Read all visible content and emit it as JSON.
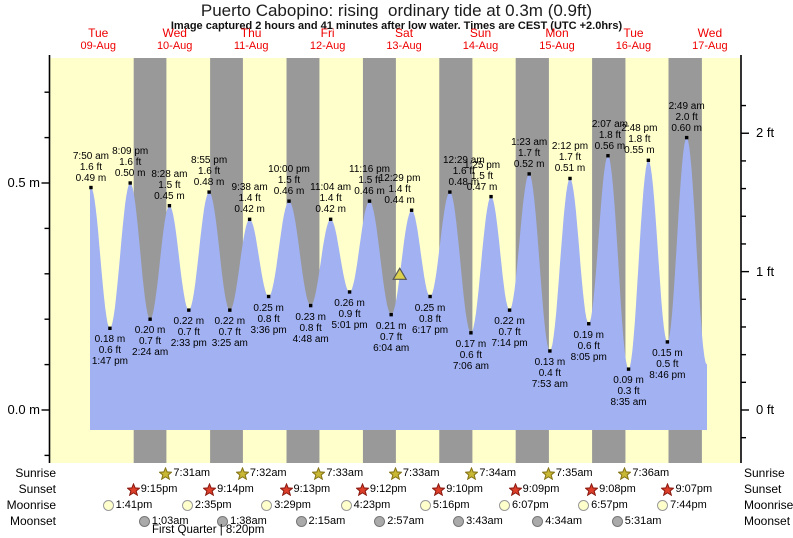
{
  "title": "Puerto Cabopino: rising  ordinary tide at 0.3m (0.9ft)",
  "subtitle": "Image captured 2 hours and 41 minutes after low water. Times are CEST (UTC +2.0hrs)",
  "colors": {
    "day_band": "#ffffcc",
    "night_band": "#999999",
    "tide_fill": "#a1b1f2",
    "day_label": "#ee0000",
    "marker_fill": "#ddd24e",
    "marker_stroke": "#555555",
    "sunrise_star_fill": "#c9b834",
    "sunrise_star_stroke": "#857417",
    "sunset_star_fill": "#dd3f2a",
    "sunset_star_stroke": "#8a1a10",
    "moonrise_fill": "#ffffcc",
    "moonrise_stroke": "#999999",
    "moonset_fill": "#aaaaaa",
    "moonset_stroke": "#777777"
  },
  "chart_data": {
    "type": "area",
    "title": "Puerto Cabopino: rising  ordinary tide at 0.3m (0.9ft)",
    "days": [
      {
        "dow": "Tue",
        "date": "09-Aug"
      },
      {
        "dow": "Wed",
        "date": "10-Aug"
      },
      {
        "dow": "Thu",
        "date": "11-Aug"
      },
      {
        "dow": "Fri",
        "date": "12-Aug"
      },
      {
        "dow": "Sat",
        "date": "13-Aug"
      },
      {
        "dow": "Sun",
        "date": "14-Aug"
      },
      {
        "dow": "Mon",
        "date": "15-Aug"
      },
      {
        "dow": "Tue",
        "date": "16-Aug"
      },
      {
        "dow": "Wed",
        "date": "17-Aug"
      }
    ],
    "y_axis_left": {
      "unit": "m",
      "major_labels": [
        {
          "value": 0.5,
          "label": "0.5 m"
        },
        {
          "value": 0.0,
          "label": "0.0 m"
        }
      ],
      "minor_step": 0.1,
      "range": [
        -0.1,
        0.7
      ]
    },
    "y_axis_right": {
      "unit": "ft",
      "major_labels": [
        {
          "value": 2,
          "label": "2 ft"
        },
        {
          "value": 1,
          "label": "1 ft"
        },
        {
          "value": 0,
          "label": "0 ft"
        }
      ],
      "minor_step": 0.2,
      "range": [
        -0.2,
        2.3
      ]
    },
    "tide_events": [
      {
        "day": 0,
        "type": "high",
        "time": "7:50 am",
        "ft": "1.6 ft",
        "m": "0.49 m"
      },
      {
        "day": 0,
        "type": "low",
        "time": "1:47 pm",
        "ft": "0.6 ft",
        "m": "0.18 m"
      },
      {
        "day": 0,
        "type": "high",
        "time": "8:09 pm",
        "ft": "1.6 ft",
        "m": "0.50 m"
      },
      {
        "day": 1,
        "type": "low",
        "time": "2:24 am",
        "ft": "0.7 ft",
        "m": "0.20 m"
      },
      {
        "day": 1,
        "type": "high",
        "time": "8:28 am",
        "ft": "1.5 ft",
        "m": "0.45 m"
      },
      {
        "day": 1,
        "type": "low",
        "time": "2:33 pm",
        "ft": "0.7 ft",
        "m": "0.22 m"
      },
      {
        "day": 1,
        "type": "high",
        "time": "8:55 pm",
        "ft": "1.6 ft",
        "m": "0.48 m"
      },
      {
        "day": 2,
        "type": "low",
        "time": "3:25 am",
        "ft": "0.7 ft",
        "m": "0.22 m"
      },
      {
        "day": 2,
        "type": "high",
        "time": "9:38 am",
        "ft": "1.4 ft",
        "m": "0.42 m"
      },
      {
        "day": 2,
        "type": "low",
        "time": "3:36 pm",
        "ft": "0.8 ft",
        "m": "0.25 m"
      },
      {
        "day": 2,
        "type": "high",
        "time": "10:00 pm",
        "ft": "1.5 ft",
        "m": "0.46 m"
      },
      {
        "day": 3,
        "type": "low",
        "time": "4:48 am",
        "ft": "0.8 ft",
        "m": "0.23 m"
      },
      {
        "day": 3,
        "type": "high",
        "time": "11:04 am",
        "ft": "1.4 ft",
        "m": "0.42 m"
      },
      {
        "day": 3,
        "type": "low",
        "time": "5:01 pm",
        "ft": "0.9 ft",
        "m": "0.26 m"
      },
      {
        "day": 3,
        "type": "high",
        "time": "11:16 pm",
        "ft": "1.5 ft",
        "m": "0.46 m"
      },
      {
        "day": 4,
        "type": "low",
        "time": "6:04 am",
        "ft": "0.7 ft",
        "m": "0.21 m"
      },
      {
        "day": 4,
        "type": "high",
        "time": "12:29 pm",
        "ft": "1.4 ft",
        "m": "0.44 m"
      },
      {
        "day": 4,
        "type": "low",
        "time": "6:17 pm",
        "ft": "0.8 ft",
        "m": "0.25 m"
      },
      {
        "day": 5,
        "type": "high",
        "time": "12:29 am",
        "ft": "1.6 ft",
        "m": "0.48 m"
      },
      {
        "day": 5,
        "type": "low",
        "time": "7:06 am",
        "ft": "0.6 ft",
        "m": "0.17 m"
      },
      {
        "day": 5,
        "type": "high",
        "time": "1:25 pm",
        "ft": "1.5 ft",
        "m": "0.47 m"
      },
      {
        "day": 5,
        "type": "low",
        "time": "7:14 pm",
        "ft": "0.7 ft",
        "m": "0.22 m"
      },
      {
        "day": 6,
        "type": "high",
        "time": "1:23 am",
        "ft": "1.7 ft",
        "m": "0.52 m"
      },
      {
        "day": 6,
        "type": "low",
        "time": "7:53 am",
        "ft": "0.4 ft",
        "m": "0.13 m"
      },
      {
        "day": 6,
        "type": "high",
        "time": "2:12 pm",
        "ft": "1.7 ft",
        "m": "0.51 m"
      },
      {
        "day": 6,
        "type": "low",
        "time": "8:05 pm",
        "ft": "0.6 ft",
        "m": "0.19 m"
      },
      {
        "day": 7,
        "type": "high",
        "time": "2:07 am",
        "ft": "1.8 ft",
        "m": "0.56 m"
      },
      {
        "day": 7,
        "type": "low",
        "time": "8:35 am",
        "ft": "0.3 ft",
        "m": "0.09 m"
      },
      {
        "day": 7,
        "type": "high",
        "time": "2:48 pm",
        "ft": "1.8 ft",
        "m": "0.55 m"
      },
      {
        "day": 7,
        "type": "low",
        "time": "8:46 pm",
        "ft": "0.5 ft",
        "m": "0.15 m"
      },
      {
        "day": 8,
        "type": "high",
        "time": "2:49 am",
        "ft": "2.0 ft",
        "m": "0.60 m"
      }
    ],
    "current_marker": {
      "height_m": 0.3,
      "after_low_hours": 2.683,
      "ref_low_index": 15
    },
    "sun_moon_rows": [
      {
        "name": "Sunrise",
        "icon": "sunrise-star",
        "events": [
          {
            "day": 1,
            "time": "7:31am"
          },
          {
            "day": 2,
            "time": "7:32am"
          },
          {
            "day": 3,
            "time": "7:33am"
          },
          {
            "day": 4,
            "time": "7:33am"
          },
          {
            "day": 5,
            "time": "7:34am"
          },
          {
            "day": 6,
            "time": "7:35am"
          },
          {
            "day": 7,
            "time": "7:36am"
          }
        ]
      },
      {
        "name": "Sunset",
        "icon": "sunset-star",
        "events": [
          {
            "day": 0,
            "time": "9:15pm"
          },
          {
            "day": 1,
            "time": "9:14pm"
          },
          {
            "day": 2,
            "time": "9:13pm"
          },
          {
            "day": 3,
            "time": "9:12pm"
          },
          {
            "day": 4,
            "time": "9:10pm"
          },
          {
            "day": 5,
            "time": "9:09pm"
          },
          {
            "day": 6,
            "time": "9:08pm"
          },
          {
            "day": 7,
            "time": "9:07pm"
          }
        ]
      },
      {
        "name": "Moonrise",
        "icon": "moonrise-circle",
        "events": [
          {
            "day": 0,
            "time": "1:41pm"
          },
          {
            "day": 1,
            "time": "2:35pm"
          },
          {
            "day": 2,
            "time": "3:29pm"
          },
          {
            "day": 3,
            "time": "4:23pm"
          },
          {
            "day": 4,
            "time": "5:16pm"
          },
          {
            "day": 5,
            "time": "6:07pm"
          },
          {
            "day": 6,
            "time": "6:57pm"
          },
          {
            "day": 7,
            "time": "7:44pm"
          }
        ]
      },
      {
        "name": "Moonset",
        "icon": "moonset-circle",
        "events": [
          {
            "day": 1,
            "time": "1:03am"
          },
          {
            "day": 2,
            "time": "1:38am"
          },
          {
            "day": 3,
            "time": "2:15am"
          },
          {
            "day": 4,
            "time": "2:57am"
          },
          {
            "day": 5,
            "time": "3:43am"
          },
          {
            "day": 6,
            "time": "4:34am"
          },
          {
            "day": 7,
            "time": "5:31am"
          }
        ]
      }
    ],
    "moon_phase": "First Quarter | 8:20pm"
  }
}
